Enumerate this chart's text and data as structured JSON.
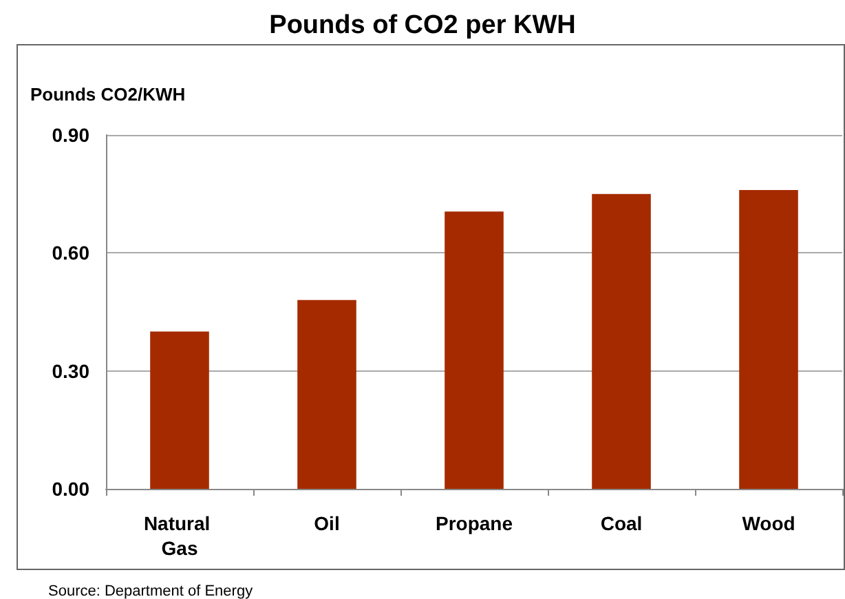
{
  "chart_data": {
    "type": "bar",
    "title": "Pounds of CO2 per KWH",
    "ylabel": "Pounds CO2/KWH",
    "categories": [
      "Natural Gas",
      "Oil",
      "Propane",
      "Coal",
      "Wood"
    ],
    "values": [
      0.4,
      0.48,
      0.705,
      0.75,
      0.76
    ],
    "color": "#a52a00",
    "ylim": [
      0,
      0.9
    ],
    "yticks": [
      {
        "value": 0,
        "label": "0.00"
      },
      {
        "value": 0.3,
        "label": "0.30"
      },
      {
        "value": 0.6,
        "label": "0.60"
      },
      {
        "value": 0.9,
        "label": "0.90"
      }
    ],
    "grid": "y",
    "annotations": [
      "Source: Department of Energy"
    ]
  }
}
